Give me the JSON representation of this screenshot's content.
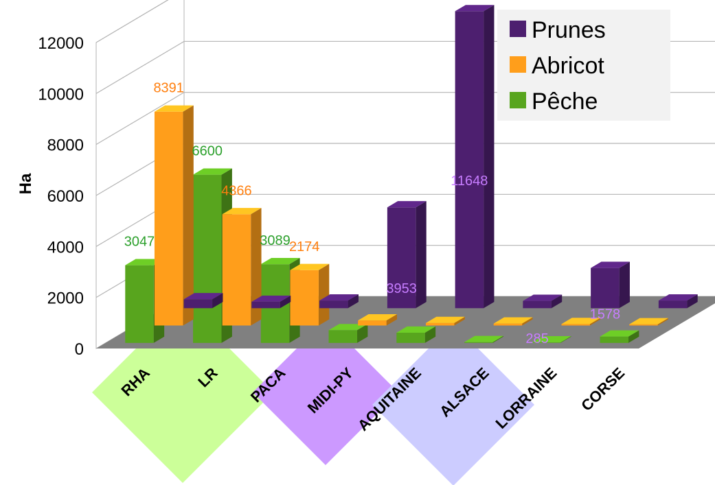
{
  "chart_data": {
    "type": "bar",
    "title": "",
    "xlabel": "",
    "ylabel": "Ha",
    "ylim": [
      0,
      12000
    ],
    "yticks": [
      0,
      2000,
      4000,
      6000,
      8000,
      10000,
      12000
    ],
    "categories": [
      "RHA",
      "LR",
      "PACA",
      "MIDI-PY",
      "AQUITAINE",
      "ALSACE",
      "LORRAINE",
      "CORSE"
    ],
    "series": [
      {
        "name": "Prunes",
        "color": "#4d1f6f",
        "values": [
          350,
          250,
          300,
          3953,
          11648,
          285,
          1578,
          300
        ],
        "labels": [
          "",
          "",
          "",
          "3953",
          "11648",
          "285",
          "1578",
          ""
        ]
      },
      {
        "name": "Abricot",
        "color": "#ff9e1b",
        "values": [
          8391,
          4366,
          2174,
          200,
          100,
          80,
          60,
          50
        ],
        "labels": [
          "8391",
          "4366",
          "2174",
          "",
          "",
          "",
          "",
          ""
        ]
      },
      {
        "name": "Pêche",
        "color": "#58a51e",
        "values": [
          3047,
          6600,
          3089,
          500,
          400,
          30,
          20,
          250
        ],
        "labels": [
          "3047",
          "6600",
          "3089",
          "",
          "",
          "",
          "",
          ""
        ]
      }
    ],
    "label_colors": {
      "Prunes": "#c77dff",
      "Abricot": "#ff7f0e",
      "Pêche": "#2ca02c"
    },
    "grid": true,
    "legend_position": "top-right",
    "category_highlights": [
      {
        "categories": [
          "RHA",
          "LR",
          "PACA"
        ],
        "color": "#ccff99"
      },
      {
        "categories": [
          "MIDI-PY",
          "AQUITAINE"
        ],
        "color": "#cc99ff"
      },
      {
        "categories": [
          "ALSACE",
          "LORRAINE"
        ],
        "color": "#ccccff"
      }
    ]
  }
}
